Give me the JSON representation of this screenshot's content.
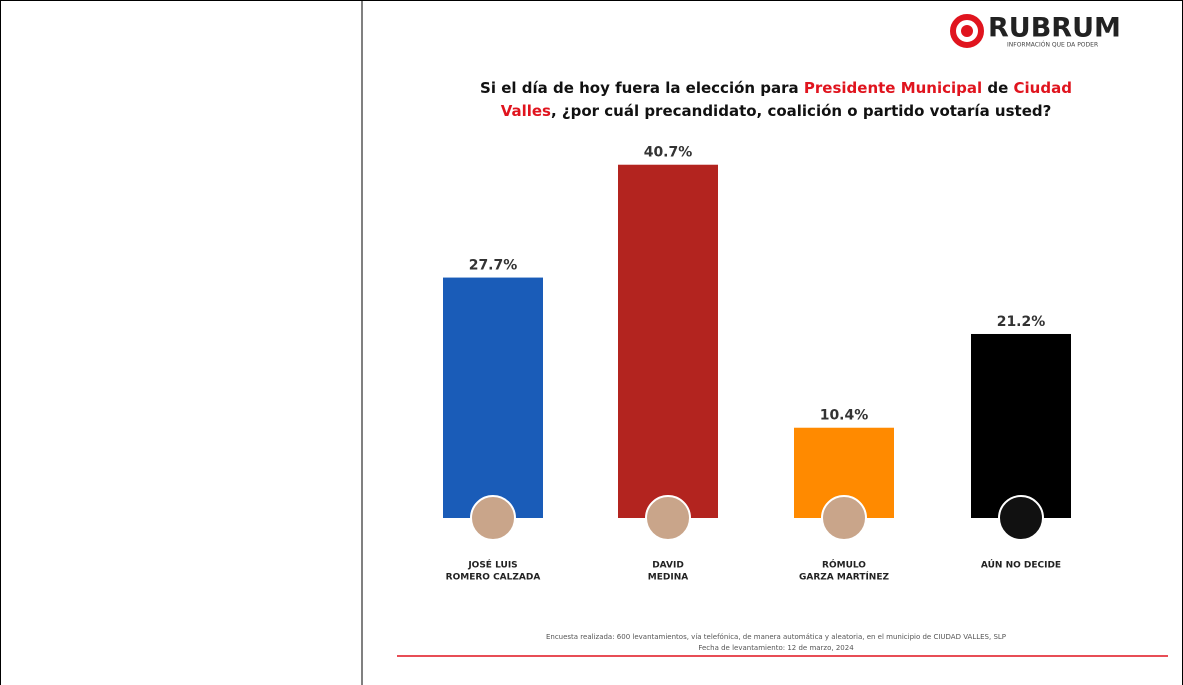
{
  "chart_data": {
    "type": "bar",
    "brand": "RUBRUM",
    "tagline": "INFORMACIÓN QUE DA PODER",
    "title": [
      [
        {
          "text": "Si el día de hoy fuera la elección para ",
          "color": "#111111"
        },
        {
          "text": "Presidente Municipal",
          "color": "#e0141e"
        },
        {
          "text": " de ",
          "color": "#111111"
        },
        {
          "text": "Ciudad",
          "color": "#e0141e"
        }
      ],
      [
        {
          "text": "Valles",
          "color": "#e0141e"
        },
        {
          "text": ", ¿por cuál precandidato, coalición o partido votaría usted?",
          "color": "#111111"
        }
      ]
    ],
    "categories": [
      [
        "JOSÉ LUIS",
        "ROMERO CALZADA"
      ],
      [
        "DAVID",
        "MEDINA"
      ],
      [
        "RÓMULO",
        "GARZA MARTÍNEZ"
      ],
      [
        "AÚN NO DECIDE"
      ]
    ],
    "values": [
      27.7,
      40.7,
      10.4,
      21.2
    ],
    "value_labels": [
      "27.7%",
      "40.7%",
      "10.4%",
      "21.2%"
    ],
    "colors": [
      "#1a5cb8",
      "#b3241f",
      "#ff8a00",
      "#000000"
    ],
    "footnote": [
      "Encuesta realizada: 600 levantamientos, vía telefónica, de manera automática y aleatoria, en el municipio de CIUDAD VALLES, SLP",
      "Fecha de levantamiento: 12 de marzo, 2024"
    ]
  }
}
